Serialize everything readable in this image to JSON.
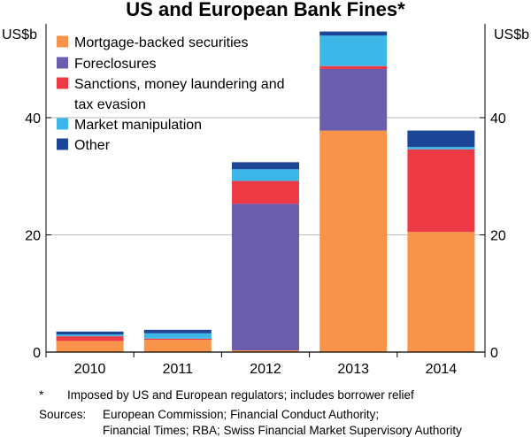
{
  "title": "US and European Bank Fines*",
  "chart_data": {
    "type": "bar",
    "stacked": true,
    "title": "US and European Bank Fines*",
    "ylabel_left": "US$b",
    "ylabel_right": "US$b",
    "ylim": [
      0,
      56
    ],
    "yticks": [
      0,
      20,
      40
    ],
    "grid": true,
    "legend_position": "top-left",
    "categories": [
      "2010",
      "2011",
      "2012",
      "2013",
      "2014"
    ],
    "series": [
      {
        "name": "Mortgage-backed securities",
        "color": "#f7944a",
        "values": [
          1.9,
          2.1,
          0.3,
          37.8,
          20.5
        ]
      },
      {
        "name": "Foreclosures",
        "color": "#6b5eae",
        "values": [
          0.0,
          0.0,
          25.0,
          10.5,
          0.0
        ]
      },
      {
        "name": "Sanctions, money laundering and tax evasion",
        "color": "#ee3a45",
        "values": [
          0.8,
          0.2,
          3.9,
          0.5,
          14.1
        ]
      },
      {
        "name": "Market manipulation",
        "color": "#3cb7e8",
        "values": [
          0.3,
          0.9,
          2.0,
          5.2,
          0.4
        ]
      },
      {
        "name": "Other",
        "color": "#1c4596",
        "values": [
          0.5,
          0.6,
          1.2,
          0.7,
          2.8
        ]
      }
    ]
  },
  "footnote": {
    "mark": "*",
    "text": "Imposed by US and European regulators; includes borrower relief"
  },
  "sources": {
    "label": "Sources:",
    "line1": "European Commission; Financial Conduct Authority;",
    "line2": "Financial Times; RBA; Swiss Financial Market Supervisory Authority"
  }
}
